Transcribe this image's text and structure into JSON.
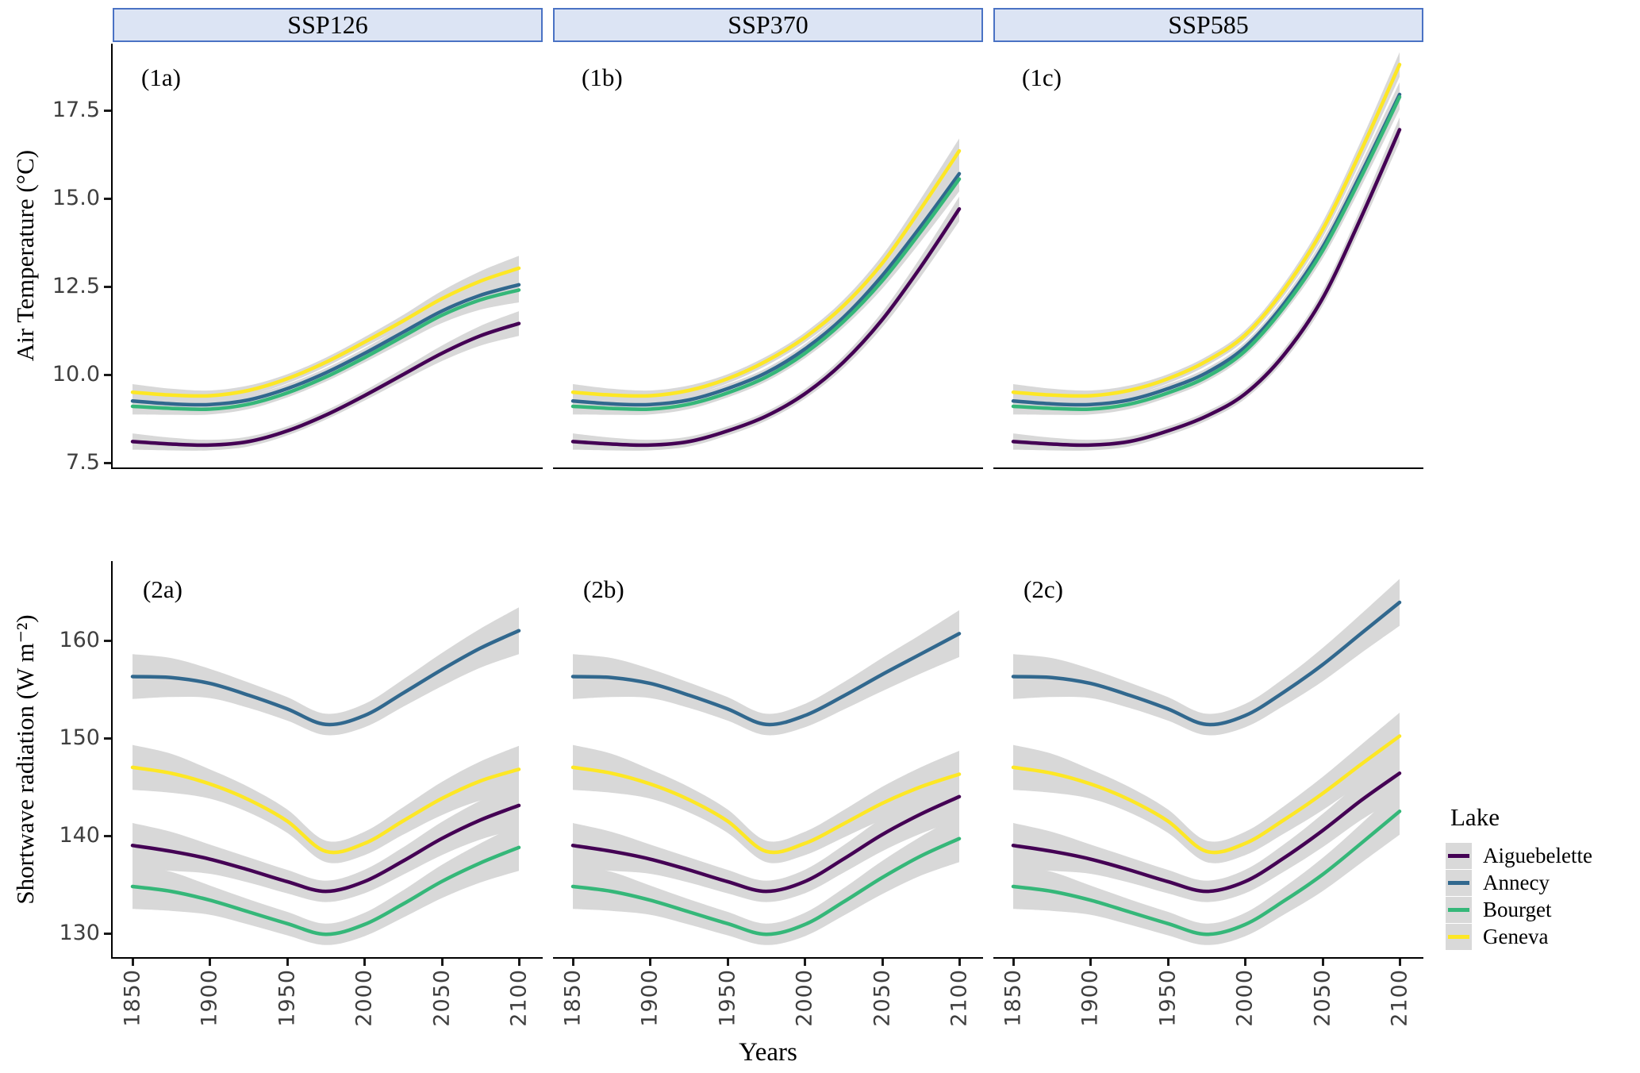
{
  "figure": {
    "strips": [
      "SSP126",
      "SSP370",
      "SSP585"
    ],
    "x_axis": {
      "title": "Years",
      "ticks": [
        "1850",
        "1900",
        "1950",
        "2000",
        "2050",
        "2100"
      ]
    },
    "row1": {
      "axis_title": "Air Temperature (°C)",
      "ticks": [
        "7.5",
        "10.0",
        "12.5",
        "15.0",
        "17.5"
      ]
    },
    "row2": {
      "axis_title": "Shortwave radiation (W m⁻²)",
      "ticks": [
        "130",
        "140",
        "150",
        "160"
      ]
    },
    "legend": {
      "title": "Lake",
      "entries": [
        {
          "label": "Aiguebelette",
          "color": "#440154"
        },
        {
          "label": "Annecy",
          "color": "#31688E"
        },
        {
          "label": "Bourget",
          "color": "#35B779"
        },
        {
          "label": "Geneva",
          "color": "#FDE725"
        }
      ]
    },
    "ci_color": "#d8d8d8"
  },
  "chart_data": [
    {
      "id": "1a",
      "panel_tag": "(1a)",
      "type": "line",
      "scenario": "SSP126",
      "title": "Air Temperature SSP126",
      "xlabel": "Years",
      "ylabel": "Air Temperature (°C)",
      "xlim": [
        1837,
        2113
      ],
      "ylim": [
        7.3,
        19.4
      ],
      "grid": false,
      "legend_position": "none",
      "x": [
        1850,
        1875,
        1900,
        1925,
        1950,
        1975,
        2000,
        2025,
        2050,
        2075,
        2100
      ],
      "ci": [
        0.23,
        0.18,
        0.15,
        0.14,
        0.13,
        0.13,
        0.14,
        0.17,
        0.22,
        0.28,
        0.35
      ],
      "series": [
        {
          "name": "Aiguebelette",
          "color": "#440154",
          "values": [
            8.1,
            8.03,
            8.0,
            8.1,
            8.4,
            8.85,
            9.4,
            10.0,
            10.6,
            11.1,
            11.45
          ]
        },
        {
          "name": "Annecy",
          "color": "#31688E",
          "values": [
            9.25,
            9.17,
            9.15,
            9.28,
            9.6,
            10.05,
            10.6,
            11.2,
            11.8,
            12.25,
            12.55
          ]
        },
        {
          "name": "Bourget",
          "color": "#35B779",
          "values": [
            9.1,
            9.04,
            9.02,
            9.16,
            9.48,
            9.93,
            10.48,
            11.08,
            11.68,
            12.12,
            12.4
          ]
        },
        {
          "name": "Geneva",
          "color": "#FDE725",
          "values": [
            9.5,
            9.42,
            9.4,
            9.55,
            9.88,
            10.35,
            10.92,
            11.52,
            12.15,
            12.65,
            13.02
          ]
        }
      ]
    },
    {
      "id": "1b",
      "panel_tag": "(1b)",
      "type": "line",
      "scenario": "SSP370",
      "title": "Air Temperature SSP370",
      "xlabel": "Years",
      "ylabel": "Air Temperature (°C)",
      "xlim": [
        1837,
        2113
      ],
      "ylim": [
        7.3,
        19.4
      ],
      "grid": false,
      "legend_position": "none",
      "x": [
        1850,
        1875,
        1900,
        1925,
        1950,
        1975,
        2000,
        2025,
        2050,
        2075,
        2100
      ],
      "ci": [
        0.23,
        0.18,
        0.15,
        0.14,
        0.13,
        0.13,
        0.14,
        0.17,
        0.22,
        0.28,
        0.35
      ],
      "series": [
        {
          "name": "Aiguebelette",
          "color": "#440154",
          "values": [
            8.1,
            8.03,
            8.0,
            8.1,
            8.4,
            8.82,
            9.45,
            10.35,
            11.55,
            13.05,
            14.7
          ]
        },
        {
          "name": "Annecy",
          "color": "#31688E",
          "values": [
            9.25,
            9.17,
            9.15,
            9.28,
            9.6,
            10.05,
            10.72,
            11.62,
            12.8,
            14.2,
            15.7
          ]
        },
        {
          "name": "Bourget",
          "color": "#35B779",
          "values": [
            9.1,
            9.04,
            9.02,
            9.16,
            9.48,
            9.93,
            10.6,
            11.5,
            12.65,
            14.05,
            15.55
          ]
        },
        {
          "name": "Geneva",
          "color": "#FDE725",
          "values": [
            9.5,
            9.42,
            9.4,
            9.55,
            9.88,
            10.38,
            11.05,
            11.95,
            13.15,
            14.7,
            16.35
          ]
        }
      ]
    },
    {
      "id": "1c",
      "panel_tag": "(1c)",
      "type": "line",
      "scenario": "SSP585",
      "title": "Air Temperature SSP585",
      "xlabel": "Years",
      "ylabel": "Air Temperature (°C)",
      "xlim": [
        1837,
        2113
      ],
      "ylim": [
        7.3,
        19.4
      ],
      "grid": false,
      "legend_position": "none",
      "x": [
        1850,
        1875,
        1900,
        1925,
        1950,
        1975,
        2000,
        2025,
        2050,
        2075,
        2100
      ],
      "ci": [
        0.23,
        0.18,
        0.15,
        0.14,
        0.13,
        0.13,
        0.14,
        0.17,
        0.22,
        0.28,
        0.35
      ],
      "series": [
        {
          "name": "Aiguebelette",
          "color": "#440154",
          "values": [
            8.1,
            8.03,
            8.0,
            8.1,
            8.4,
            8.82,
            9.45,
            10.55,
            12.15,
            14.45,
            16.95
          ]
        },
        {
          "name": "Annecy",
          "color": "#31688E",
          "values": [
            9.25,
            9.17,
            9.15,
            9.28,
            9.6,
            10.05,
            10.78,
            12.0,
            13.6,
            15.7,
            17.95
          ]
        },
        {
          "name": "Bourget",
          "color": "#35B779",
          "values": [
            9.1,
            9.04,
            9.02,
            9.16,
            9.48,
            9.93,
            10.67,
            11.9,
            13.5,
            15.6,
            17.88
          ]
        },
        {
          "name": "Geneva",
          "color": "#FDE725",
          "values": [
            9.5,
            9.42,
            9.4,
            9.55,
            9.88,
            10.38,
            11.12,
            12.4,
            14.1,
            16.35,
            18.8
          ]
        }
      ]
    },
    {
      "id": "2a",
      "panel_tag": "(2a)",
      "type": "line",
      "scenario": "SSP126",
      "title": "Shortwave radiation SSP126",
      "xlabel": "Years",
      "ylabel": "Shortwave radiation (W m⁻²)",
      "xlim": [
        1837,
        2113
      ],
      "ylim": [
        127.4,
        168.1
      ],
      "grid": false,
      "legend_position": "right",
      "x": [
        1850,
        1875,
        1900,
        1925,
        1950,
        1975,
        2000,
        2025,
        2050,
        2075,
        2100
      ],
      "ci": [
        2.3,
        2.0,
        1.5,
        1.3,
        1.2,
        1.1,
        1.2,
        1.4,
        1.7,
        2.0,
        2.4
      ],
      "series": [
        {
          "name": "Aiguebelette",
          "color": "#440154",
          "values": [
            139.0,
            138.4,
            137.6,
            136.5,
            135.3,
            134.3,
            135.3,
            137.4,
            139.7,
            141.6,
            143.1
          ]
        },
        {
          "name": "Annecy",
          "color": "#31688E",
          "values": [
            156.3,
            156.2,
            155.6,
            154.4,
            153.0,
            151.4,
            152.3,
            154.6,
            157.0,
            159.2,
            161.0
          ]
        },
        {
          "name": "Bourget",
          "color": "#35B779",
          "values": [
            134.8,
            134.3,
            133.4,
            132.2,
            131.0,
            129.9,
            130.9,
            133.0,
            135.3,
            137.2,
            138.8
          ]
        },
        {
          "name": "Geneva",
          "color": "#FDE725",
          "values": [
            147.0,
            146.4,
            145.3,
            143.7,
            141.5,
            138.4,
            139.2,
            141.5,
            143.8,
            145.6,
            146.8
          ]
        }
      ]
    },
    {
      "id": "2b",
      "panel_tag": "(2b)",
      "type": "line",
      "scenario": "SSP370",
      "title": "Shortwave radiation SSP370",
      "xlabel": "Years",
      "ylabel": "Shortwave radiation (W m⁻²)",
      "xlim": [
        1837,
        2113
      ],
      "ylim": [
        127.4,
        168.1
      ],
      "grid": false,
      "legend_position": "right",
      "x": [
        1850,
        1875,
        1900,
        1925,
        1950,
        1975,
        2000,
        2025,
        2050,
        2075,
        2100
      ],
      "ci": [
        2.3,
        2.0,
        1.5,
        1.3,
        1.2,
        1.1,
        1.2,
        1.4,
        1.7,
        2.0,
        2.4
      ],
      "series": [
        {
          "name": "Aiguebelette",
          "color": "#440154",
          "values": [
            139.0,
            138.4,
            137.6,
            136.5,
            135.3,
            134.3,
            135.3,
            137.6,
            140.1,
            142.2,
            144.0
          ]
        },
        {
          "name": "Annecy",
          "color": "#31688E",
          "values": [
            156.3,
            156.2,
            155.6,
            154.4,
            153.0,
            151.4,
            152.3,
            154.3,
            156.5,
            158.6,
            160.7
          ]
        },
        {
          "name": "Bourget",
          "color": "#35B779",
          "values": [
            134.8,
            134.3,
            133.4,
            132.2,
            131.0,
            129.9,
            130.9,
            133.2,
            135.7,
            137.9,
            139.7
          ]
        },
        {
          "name": "Geneva",
          "color": "#FDE725",
          "values": [
            147.0,
            146.4,
            145.3,
            143.7,
            141.5,
            138.4,
            139.2,
            141.2,
            143.3,
            145.0,
            146.3
          ]
        }
      ]
    },
    {
      "id": "2c",
      "panel_tag": "(2c)",
      "type": "line",
      "scenario": "SSP585",
      "title": "Shortwave radiation SSP585",
      "xlabel": "Years",
      "ylabel": "Shortwave radiation (W m⁻²)",
      "xlim": [
        1837,
        2113
      ],
      "ylim": [
        127.4,
        168.1
      ],
      "grid": false,
      "legend_position": "right",
      "x": [
        1850,
        1875,
        1900,
        1925,
        1950,
        1975,
        2000,
        2025,
        2050,
        2075,
        2100
      ],
      "ci": [
        2.3,
        2.0,
        1.5,
        1.3,
        1.2,
        1.1,
        1.2,
        1.4,
        1.7,
        2.0,
        2.4
      ],
      "series": [
        {
          "name": "Aiguebelette",
          "color": "#440154",
          "values": [
            139.0,
            138.4,
            137.6,
            136.5,
            135.3,
            134.3,
            135.3,
            137.7,
            140.5,
            143.6,
            146.4
          ]
        },
        {
          "name": "Annecy",
          "color": "#31688E",
          "values": [
            156.3,
            156.2,
            155.6,
            154.4,
            153.0,
            151.4,
            152.3,
            154.7,
            157.5,
            160.7,
            163.9
          ]
        },
        {
          "name": "Bourget",
          "color": "#35B779",
          "values": [
            134.8,
            134.3,
            133.4,
            132.2,
            131.0,
            129.9,
            130.9,
            133.3,
            136.0,
            139.2,
            142.5
          ]
        },
        {
          "name": "Geneva",
          "color": "#FDE725",
          "values": [
            147.0,
            146.4,
            145.3,
            143.7,
            141.5,
            138.4,
            139.2,
            141.6,
            144.3,
            147.3,
            150.2
          ]
        }
      ]
    }
  ]
}
